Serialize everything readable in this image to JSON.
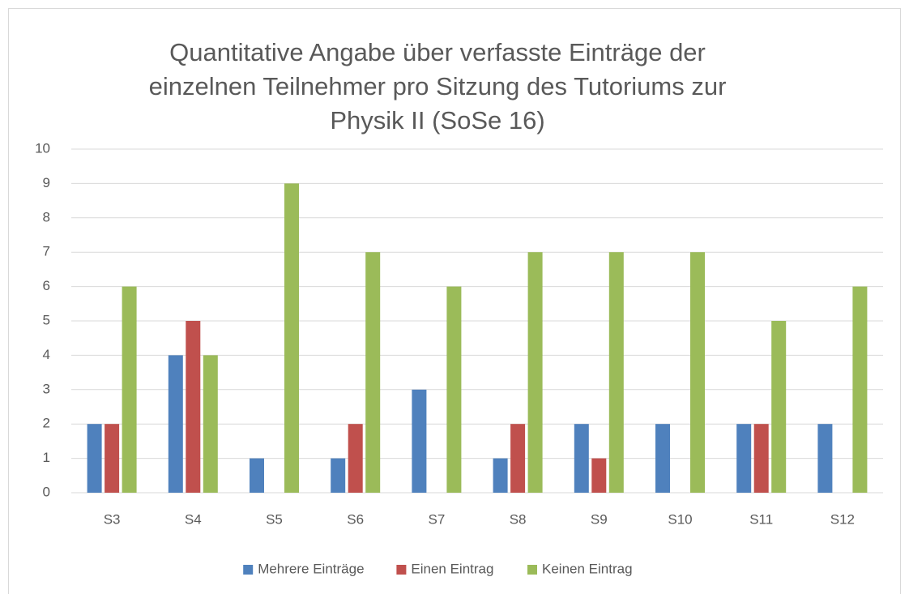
{
  "chart_data": {
    "type": "bar",
    "title": "Quantitative Angabe über verfasste Einträge der einzelnen Teilnehmer pro Sitzung des Tutoriums zur Physik II (SoSe 16)",
    "categories": [
      "S3",
      "S4",
      "S5",
      "S6",
      "S7",
      "S8",
      "S9",
      "S10",
      "S11",
      "S12"
    ],
    "series": [
      {
        "name": "Mehrere Einträge",
        "color": "#4f81bd",
        "values": [
          2,
          4,
          1,
          1,
          3,
          1,
          2,
          2,
          2,
          2
        ]
      },
      {
        "name": "Einen Eintrag",
        "color": "#c0504d",
        "values": [
          2,
          5,
          0,
          2,
          0,
          2,
          1,
          0,
          2,
          0
        ]
      },
      {
        "name": "Keinen Eintrag",
        "color": "#9bbb59",
        "values": [
          6,
          4,
          9,
          7,
          6,
          7,
          7,
          7,
          5,
          6
        ]
      }
    ],
    "ylim": [
      0,
      10
    ],
    "yticks": [
      0,
      1,
      2,
      3,
      4,
      5,
      6,
      7,
      8,
      9,
      10
    ],
    "grid": true,
    "legend": "bottom"
  }
}
